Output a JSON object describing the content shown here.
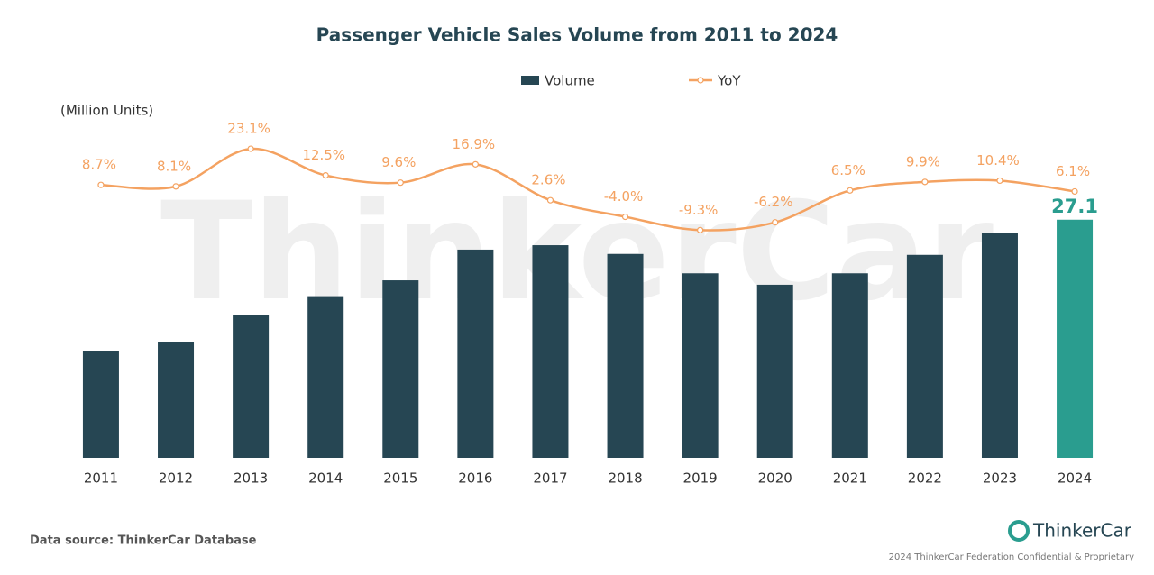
{
  "chart_data": {
    "type": "bar_line",
    "title": "Passenger Vehicle Sales Volume from 2011 to 2024",
    "y_axis_label": "(Million Units)",
    "categories": [
      "2011",
      "2012",
      "2013",
      "2014",
      "2015",
      "2016",
      "2017",
      "2018",
      "2019",
      "2020",
      "2021",
      "2022",
      "2023",
      "2024"
    ],
    "series": [
      {
        "name": "Volume",
        "type": "bar",
        "color": "#264653",
        "values": [
          12.2,
          13.2,
          16.3,
          18.4,
          20.2,
          23.7,
          24.2,
          23.2,
          21.0,
          19.7,
          21.0,
          23.1,
          25.6,
          27.1
        ]
      },
      {
        "name": "YoY",
        "type": "line",
        "axis": "y2",
        "color": "#f4a261",
        "values": [
          8.7,
          8.1,
          23.1,
          12.5,
          9.6,
          16.9,
          2.6,
          -4.0,
          -9.3,
          -6.2,
          6.5,
          9.9,
          10.4,
          6.1
        ],
        "value_labels": [
          "8.7%",
          "8.1%",
          "23.1%",
          "12.5%",
          "9.6%",
          "16.9%",
          "2.6%",
          "-4.0%",
          "-9.3%",
          "-6.2%",
          "6.5%",
          "9.9%",
          "10.4%",
          "6.1%"
        ]
      }
    ],
    "highlight": {
      "index": 13,
      "color": "#2a9d8f"
    },
    "ylim": [
      0,
      40
    ],
    "y2lim": [
      -100,
      40
    ],
    "watermark": "ThinkerCar",
    "source": "Data source: ThinkerCar Database",
    "brand": "ThinkerCar",
    "footer": "2024 ThinkerCar Federation Confidential & Proprietary"
  }
}
